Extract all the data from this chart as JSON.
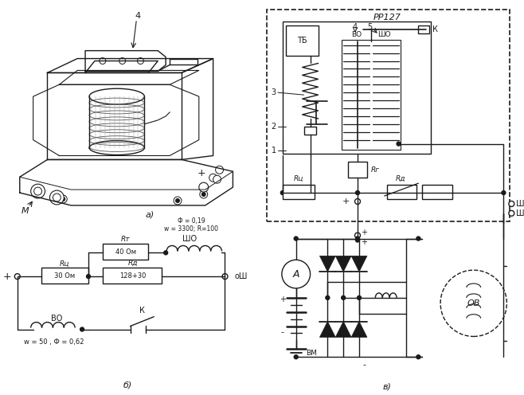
{
  "bg_color": "#ffffff",
  "line_color": "#1a1a1a",
  "title_a": "а)",
  "title_b": "б)",
  "title_c": "в)",
  "label_4": "4",
  "label_M": "М",
  "label_plus": "+",
  "label_RR127": "РР127",
  "label_TB": "ТБ",
  "label_K": "К",
  "label_3": "3",
  "label_2": "2",
  "label_1": "1",
  "label_4_top": "4",
  "label_5_top": "5",
  "label_BO_top": "ВО",
  "label_ShO_top": "ШО",
  "label_Rg": "Rг",
  "label_Ru_top": "Rц",
  "label_Rd_top": "Rд",
  "label_Sh1": "Ш",
  "label_Sh2": "Ш",
  "label_Rt": "Rт",
  "label_ShO_b": "ШО",
  "label_40om": "40 Ом",
  "label_Ru_b": "Rц",
  "label_30om": "30 Ом",
  "label_Rd_b": "Rд",
  "label_128": "128+30",
  "label_BO_b": "ВО",
  "label_w50": "w = 50 , Ф = 0,62",
  "label_w3300": "w = 3300; R=100",
  "label_phi019": "Ф = 0,19",
  "label_K_b": "К",
  "label_Sh_b": "oШ",
  "label_A": "А",
  "label_OB": "ОВ",
  "label_BM": "ВМ"
}
